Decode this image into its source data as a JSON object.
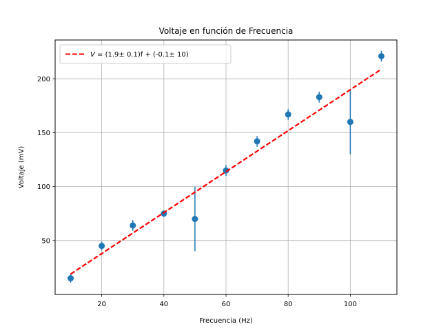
{
  "chart_data": {
    "type": "scatter",
    "title": "Voltaje en función de Frecuencia",
    "xlabel": "Frecuencia (Hz)",
    "ylabel": "Voltaje (mV)",
    "xlim": [
      5,
      115
    ],
    "ylim": [
      0,
      236
    ],
    "xticks": [
      20,
      40,
      60,
      80,
      100
    ],
    "yticks": [
      50,
      100,
      150,
      200
    ],
    "grid": true,
    "legend_position": "top-left",
    "series": [
      {
        "kind": "errorbar",
        "color": "#1f77b4",
        "x": [
          10,
          20,
          30,
          40,
          50,
          60,
          70,
          80,
          90,
          100,
          110
        ],
        "y": [
          15,
          45,
          64,
          75,
          70,
          115,
          142,
          167,
          183,
          160,
          221
        ],
        "yerr": [
          4,
          4,
          5,
          3,
          30,
          5,
          5,
          5,
          5,
          30,
          5
        ]
      },
      {
        "kind": "line",
        "name": "V = (1.9± 0.1)f + (-0.1± 10)",
        "legend_var": "V",
        "legend_rest": " = (1.9± 0.1)f + (-0.1± 10)",
        "color": "#ff0000",
        "style": "dashed",
        "slope": 1.9,
        "intercept": -0.1,
        "x_range": [
          10,
          110
        ]
      }
    ]
  }
}
